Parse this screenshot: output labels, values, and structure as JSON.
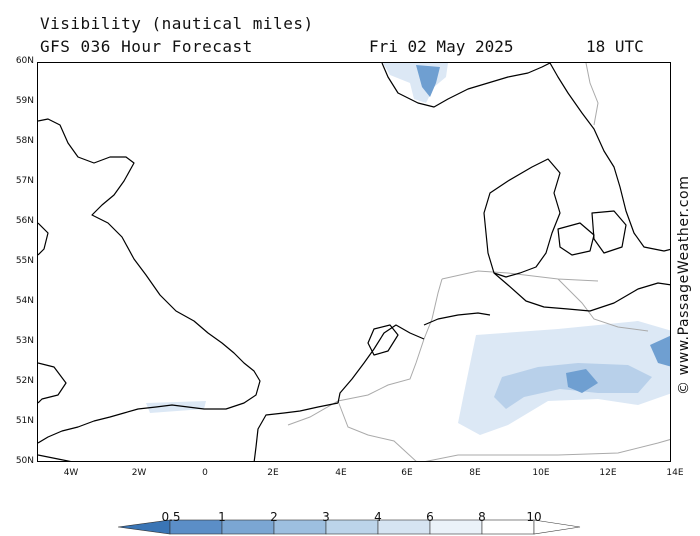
{
  "header": {
    "title": "Visibility (nautical miles)",
    "forecast": "GFS 036 Hour Forecast",
    "date": "Fri 02 May 2025",
    "time": "18 UTC"
  },
  "credit": "© www.PassageWeather.com",
  "lat_labels": [
    "60N",
    "59N",
    "58N",
    "57N",
    "56N",
    "55N",
    "54N",
    "53N",
    "52N",
    "51N",
    "50N"
  ],
  "lon_labels": [
    "4W",
    "2W",
    "0",
    "2E",
    "4E",
    "6E",
    "8E",
    "10E",
    "12E",
    "14E"
  ],
  "colorbar": {
    "labels": [
      "0.5",
      "1",
      "2",
      "3",
      "4",
      "6",
      "8",
      "10"
    ],
    "colors": [
      "#3a75b5",
      "#5b8ec7",
      "#7ba6d3",
      "#9dbfe0",
      "#bcd4ea",
      "#d6e4f2",
      "#ebf2f9",
      "#ffffff"
    ]
  },
  "colors": {
    "land_outline": "#000000",
    "border": "#aaaaaa",
    "fog_light": "#dce8f5",
    "fog_mid": "#b8d0ea",
    "fog_dark": "#6f9fd1"
  }
}
